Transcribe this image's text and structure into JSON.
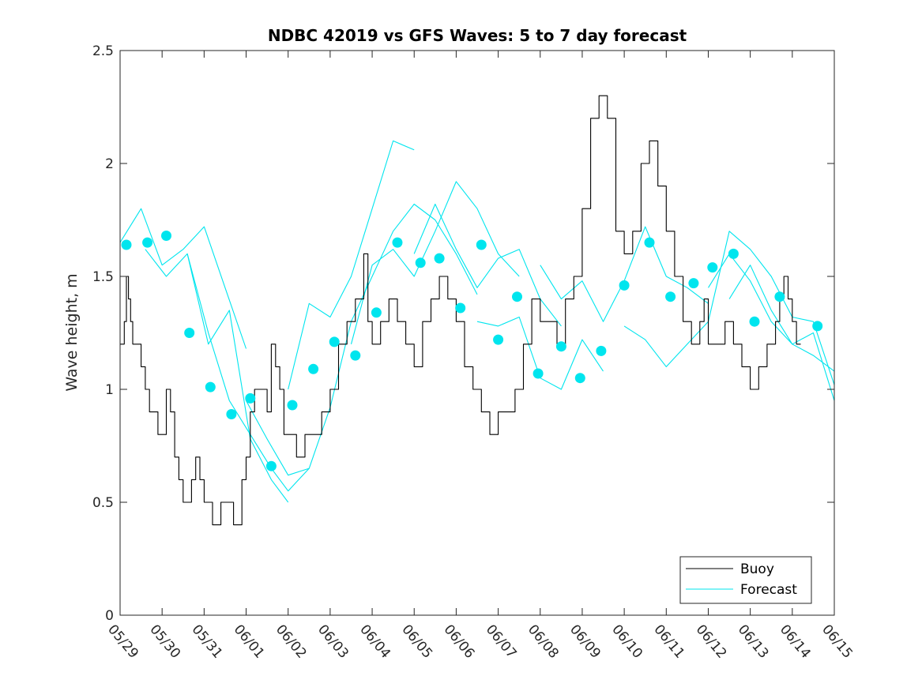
{
  "chart_data": {
    "type": "line",
    "title": "NDBC 42019 vs GFS Waves: 5 to 7 day forecast",
    "xlabel": "",
    "ylabel": "Wave height, m",
    "xlim": [
      0,
      17
    ],
    "ylim": [
      0,
      2.5
    ],
    "grid": false,
    "legend_placement": "bottom-right",
    "x_tick_labels": [
      "05/29",
      "05/30",
      "05/31",
      "06/01",
      "06/02",
      "06/03",
      "06/04",
      "06/05",
      "06/06",
      "06/07",
      "06/08",
      "06/09",
      "06/10",
      "06/11",
      "06/12",
      "06/13",
      "06/14",
      "06/15"
    ],
    "y_ticks": [
      0,
      0.5,
      1,
      1.5,
      2,
      2.5
    ],
    "y_tick_labels": [
      "0",
      "0.5",
      "1",
      "1.5",
      "2",
      "2.5"
    ],
    "legend": [
      "Buoy",
      "Forecast"
    ],
    "colors": {
      "buoy": "#000000",
      "forecast": "#00e5ee"
    },
    "series": [
      {
        "name": "Buoy",
        "x": [
          0,
          0.1,
          0.15,
          0.2,
          0.25,
          0.3,
          0.4,
          0.5,
          0.6,
          0.7,
          0.8,
          0.9,
          1.0,
          1.1,
          1.2,
          1.3,
          1.4,
          1.5,
          1.6,
          1.7,
          1.8,
          1.9,
          2.0,
          2.2,
          2.4,
          2.6,
          2.7,
          2.8,
          2.9,
          3.0,
          3.1,
          3.2,
          3.4,
          3.5,
          3.6,
          3.7,
          3.8,
          3.9,
          4.0,
          4.2,
          4.4,
          4.6,
          4.8,
          5.0,
          5.2,
          5.4,
          5.6,
          5.8,
          5.9,
          6.0,
          6.2,
          6.4,
          6.6,
          6.8,
          7.0,
          7.2,
          7.4,
          7.6,
          7.8,
          8.0,
          8.2,
          8.4,
          8.6,
          8.8,
          9.0,
          9.2,
          9.4,
          9.6,
          9.8,
          10.0,
          10.2,
          10.4,
          10.6,
          10.8,
          11.0,
          11.2,
          11.4,
          11.6,
          11.8,
          12.0,
          12.2,
          12.4,
          12.6,
          12.8,
          13.0,
          13.2,
          13.4,
          13.6,
          13.8,
          13.9,
          14.0,
          14.2,
          14.4,
          14.6,
          14.8,
          14.9,
          15.0,
          15.2,
          15.4,
          15.6,
          15.7,
          15.8,
          15.9,
          16.0,
          16.1,
          16.2
        ],
        "values": [
          1.2,
          1.3,
          1.5,
          1.4,
          1.3,
          1.2,
          1.2,
          1.1,
          1.0,
          0.9,
          0.9,
          0.8,
          0.8,
          1.0,
          0.9,
          0.7,
          0.6,
          0.5,
          0.5,
          0.6,
          0.7,
          0.6,
          0.5,
          0.4,
          0.5,
          0.5,
          0.4,
          0.4,
          0.6,
          0.7,
          0.9,
          1.0,
          1.0,
          0.9,
          1.2,
          1.1,
          1.0,
          0.8,
          0.8,
          0.7,
          0.8,
          0.8,
          0.9,
          1.0,
          1.2,
          1.3,
          1.4,
          1.6,
          1.3,
          1.2,
          1.3,
          1.4,
          1.3,
          1.2,
          1.1,
          1.3,
          1.4,
          1.5,
          1.4,
          1.3,
          1.1,
          1.0,
          0.9,
          0.8,
          0.9,
          0.9,
          1.0,
          1.2,
          1.4,
          1.3,
          1.3,
          1.2,
          1.4,
          1.5,
          1.8,
          2.2,
          2.3,
          2.2,
          1.7,
          1.6,
          1.7,
          2.0,
          2.1,
          1.9,
          1.7,
          1.5,
          1.3,
          1.2,
          1.3,
          1.4,
          1.2,
          1.2,
          1.3,
          1.2,
          1.1,
          1.1,
          1.0,
          1.1,
          1.2,
          1.3,
          1.4,
          1.5,
          1.4,
          1.3,
          1.2,
          1.2
        ]
      },
      {
        "name": "Forecast",
        "x": [
          0,
          0.5,
          1.0,
          1.5,
          2.0,
          2.5,
          3.0
        ],
        "values": [
          1.65,
          1.8,
          1.55,
          1.62,
          1.72,
          1.45,
          1.18
        ]
      },
      {
        "name": "Forecast",
        "x": [
          0.6,
          1.1,
          1.6,
          2.1,
          2.6,
          3.1,
          3.6,
          4.0
        ],
        "values": [
          1.62,
          1.5,
          1.6,
          1.2,
          1.35,
          0.78,
          0.6,
          0.5
        ]
      },
      {
        "name": "Forecast",
        "x": [
          1.6,
          2.1,
          2.6,
          3.1,
          3.6,
          4.0,
          4.5
        ],
        "values": [
          1.6,
          1.25,
          0.95,
          0.8,
          0.65,
          0.55,
          0.65
        ]
      },
      {
        "name": "Forecast",
        "x": [
          3.0,
          3.5,
          4.0,
          4.5,
          5.0,
          5.5,
          6.0,
          6.5,
          7.0,
          7.5,
          8.0,
          8.5
        ],
        "values": [
          0.95,
          0.78,
          0.62,
          0.65,
          0.92,
          1.3,
          1.5,
          1.7,
          1.82,
          1.75,
          1.6,
          1.42
        ]
      },
      {
        "name": "Forecast",
        "x": [
          4.0,
          4.5,
          5.0,
          5.5,
          6.0,
          6.5,
          7.0
        ],
        "values": [
          1.0,
          1.38,
          1.32,
          1.5,
          1.8,
          2.1,
          2.06
        ]
      },
      {
        "name": "Forecast",
        "x": [
          5.5,
          6.0,
          6.5,
          7.0,
          7.5,
          8.0,
          8.5,
          9.0,
          9.5
        ],
        "values": [
          1.2,
          1.55,
          1.62,
          1.5,
          1.7,
          1.92,
          1.8,
          1.6,
          1.5
        ]
      },
      {
        "name": "Forecast",
        "x": [
          7.0,
          7.5,
          8.0,
          8.5,
          9.0,
          9.5,
          10.0,
          10.5
        ],
        "values": [
          1.6,
          1.82,
          1.62,
          1.45,
          1.58,
          1.62,
          1.4,
          1.28
        ]
      },
      {
        "name": "Forecast",
        "x": [
          8.5,
          9.0,
          9.5,
          10.0,
          10.5,
          11.0,
          11.5
        ],
        "values": [
          1.3,
          1.28,
          1.32,
          1.05,
          1.0,
          1.22,
          1.08
        ]
      },
      {
        "name": "Forecast",
        "x": [
          10.0,
          10.5,
          11.0,
          11.5,
          12.0,
          12.5,
          13.0,
          13.5,
          14.0
        ],
        "values": [
          1.55,
          1.4,
          1.48,
          1.3,
          1.48,
          1.72,
          1.5,
          1.45,
          1.38
        ]
      },
      {
        "name": "Forecast",
        "x": [
          12.0,
          12.5,
          13.0,
          13.5,
          14.0,
          14.5,
          15.0,
          15.5,
          16.0,
          16.5,
          17.0
        ],
        "values": [
          1.28,
          1.22,
          1.1,
          1.2,
          1.3,
          1.7,
          1.62,
          1.5,
          1.32,
          1.3,
          1.02
        ]
      },
      {
        "name": "Forecast",
        "x": [
          14.0,
          14.5,
          15.0,
          15.5,
          16.0,
          16.5,
          17.0
        ],
        "values": [
          1.45,
          1.6,
          1.48,
          1.3,
          1.2,
          1.25,
          0.95
        ]
      },
      {
        "name": "Forecast",
        "x": [
          14.5,
          15.0,
          15.5,
          16.0,
          16.5,
          17.0
        ],
        "values": [
          1.4,
          1.55,
          1.35,
          1.2,
          1.15,
          1.08
        ]
      }
    ],
    "forecast_points": {
      "name": "Forecast",
      "x": [
        0.15,
        0.65,
        1.1,
        1.65,
        2.15,
        2.65,
        3.1,
        3.6,
        4.1,
        4.6,
        5.1,
        5.6,
        6.1,
        6.6,
        7.15,
        7.6,
        8.1,
        8.6,
        9.0,
        9.45,
        9.95,
        10.5,
        10.95,
        11.45,
        12.0,
        12.6,
        13.1,
        13.65,
        14.1,
        14.6,
        15.1,
        15.7,
        16.6
      ],
      "values": [
        1.64,
        1.65,
        1.68,
        1.25,
        1.01,
        0.89,
        0.96,
        0.66,
        0.93,
        1.09,
        1.21,
        1.15,
        1.34,
        1.65,
        1.56,
        1.58,
        1.36,
        1.64,
        1.22,
        1.41,
        1.07,
        1.19,
        1.05,
        1.17,
        1.46,
        1.65,
        1.41,
        1.47,
        1.54,
        1.6,
        1.3,
        1.41,
        1.28
      ]
    }
  }
}
